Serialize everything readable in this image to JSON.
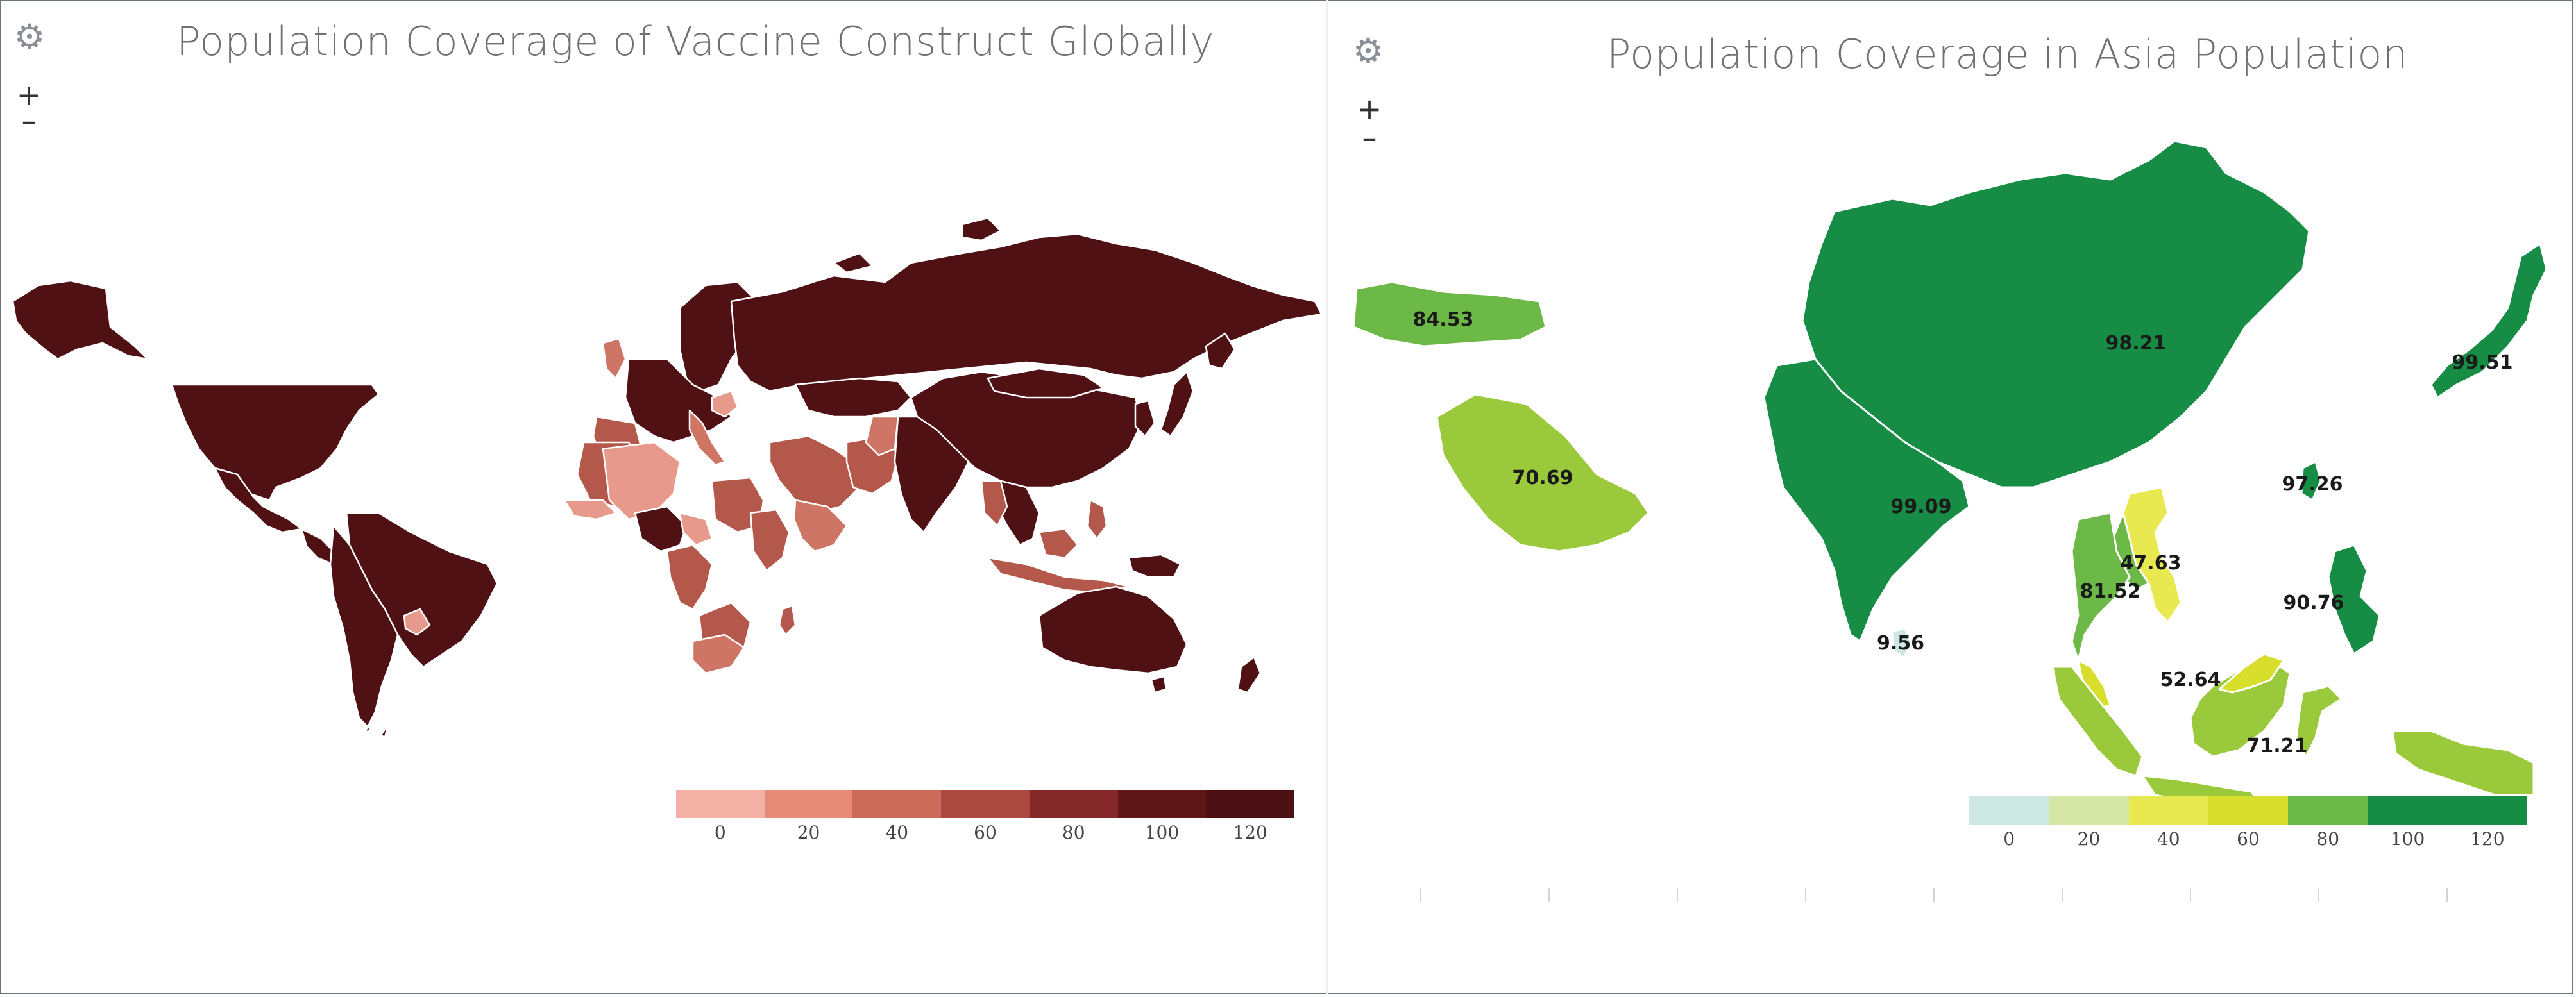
{
  "left_panel": {
    "title": "Population Coverage of Vaccine Construct Globally",
    "settings_icon": "gear-icon",
    "zoom_in": "+",
    "zoom_out": "–",
    "legend": {
      "ticks": [
        "0",
        "20",
        "40",
        "60",
        "80",
        "100",
        "120"
      ],
      "colors": [
        "#f2b1a4",
        "#e58b78",
        "#cc6b5a",
        "#a9493f",
        "#85282a",
        "#5e1618",
        "#4d1014"
      ]
    },
    "palette": {
      "dark": "#4f1114",
      "mid": "#b4584c",
      "light": "#cf7566",
      "pale": "#e7998b"
    }
  },
  "right_panel": {
    "title": "Population Coverage in Asia Population",
    "settings_icon": "gear-icon",
    "zoom_in": "+",
    "zoom_out": "–",
    "legend": {
      "ticks": [
        "0",
        "20",
        "40",
        "60",
        "80",
        "100",
        "120"
      ],
      "colors": [
        "#cde8e3",
        "#d5e6a6",
        "#e8e850",
        "#d7de2b",
        "#6db947",
        "#168c44",
        "#168c44"
      ]
    },
    "labels": {
      "turkey": "84.53",
      "saudi_arabia": "70.69",
      "china": "98.21",
      "japan": "99.51",
      "india": "99.09",
      "taiwan": "97.26",
      "vietnam": "47.63",
      "thailand": "81.52",
      "philippines": "90.76",
      "sri_lanka": "9.56",
      "malaysia": "52.64",
      "indonesia": "71.21"
    }
  },
  "chart_data": {
    "type": "map",
    "charts": [
      {
        "title": "Population Coverage of Vaccine Construct Globally",
        "legend_range": [
          0,
          120
        ]
      },
      {
        "title": "Population Coverage in Asia Population",
        "legend_range": [
          0,
          120
        ],
        "regions": [
          {
            "label": "84.53",
            "value": 84.53
          },
          {
            "label": "70.69",
            "value": 70.69
          },
          {
            "label": "98.21",
            "value": 98.21
          },
          {
            "label": "99.51",
            "value": 99.51
          },
          {
            "label": "99.09",
            "value": 99.09
          },
          {
            "label": "97.26",
            "value": 97.26
          },
          {
            "label": "47.63",
            "value": 47.63
          },
          {
            "label": "81.52",
            "value": 81.52
          },
          {
            "label": "90.76",
            "value": 90.76
          },
          {
            "label": "9.56",
            "value": 9.56
          },
          {
            "label": "52.64",
            "value": 52.64
          },
          {
            "label": "71.21",
            "value": 71.21
          }
        ]
      }
    ]
  }
}
